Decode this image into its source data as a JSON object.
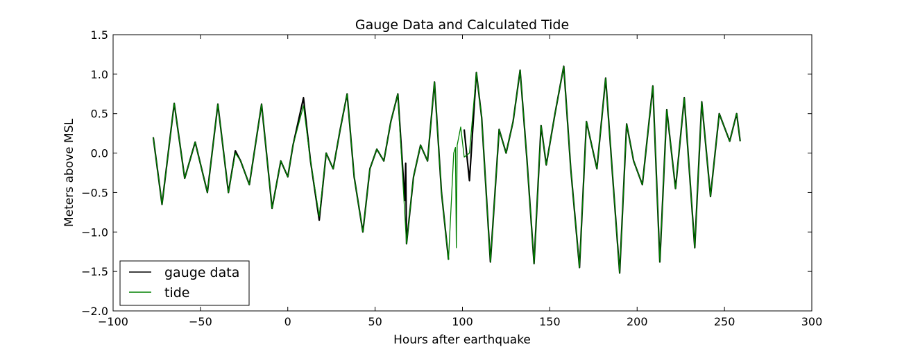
{
  "chart_data": {
    "type": "line",
    "title": "Gauge Data and Calculated Tide",
    "xlabel": "Hours after earthquake",
    "ylabel": "Meters above MSL",
    "xlim": [
      -100,
      300
    ],
    "ylim": [
      -2.0,
      1.5
    ],
    "xticks": [
      -100,
      -50,
      0,
      50,
      100,
      150,
      200,
      250,
      300
    ],
    "xtick_labels": [
      "−100",
      "−50",
      "0",
      "50",
      "100",
      "150",
      "200",
      "250",
      "300"
    ],
    "yticks": [
      -2.0,
      -1.5,
      -1.0,
      -0.5,
      0.0,
      0.5,
      1.0,
      1.5
    ],
    "ytick_labels": [
      "−2.0",
      "−1.5",
      "−1.0",
      "−0.5",
      "0.0",
      "0.5",
      "1.0",
      "1.5"
    ],
    "grid": false,
    "legend": "lower-left",
    "series": [
      {
        "name": "gauge data",
        "color": "#000000",
        "x": [
          -77,
          -72,
          -65,
          -59,
          -53,
          -46,
          -40,
          -34,
          -30,
          -27,
          -22,
          -15,
          -9,
          -4,
          0,
          3,
          9,
          13,
          18,
          22,
          26,
          30,
          34,
          38,
          43,
          47,
          51,
          55,
          59,
          63,
          67,
          67.5,
          68,
          72,
          76,
          80,
          84,
          88,
          92,
          null,
          101,
          104,
          108,
          111,
          116,
          121,
          125,
          129,
          133,
          137,
          141,
          145,
          148,
          153,
          158,
          162,
          167,
          171,
          177,
          182,
          186,
          190,
          194,
          198,
          203,
          209,
          213,
          217,
          222,
          227,
          233,
          237,
          242,
          247,
          253,
          257,
          259
        ],
        "y": [
          0.2,
          -0.65,
          0.63,
          -0.32,
          0.14,
          -0.5,
          0.62,
          -0.5,
          0.03,
          -0.1,
          -0.4,
          0.62,
          -0.7,
          -0.1,
          -0.3,
          0.1,
          0.7,
          -0.1,
          -0.85,
          0.0,
          -0.2,
          0.3,
          0.75,
          -0.3,
          -1.0,
          -0.2,
          0.05,
          -0.1,
          0.4,
          0.75,
          -0.6,
          -0.13,
          -1.15,
          -0.3,
          0.1,
          -0.1,
          0.9,
          -0.5,
          -1.35,
          null,
          0.3,
          -0.35,
          1.02,
          0.45,
          -1.38,
          0.3,
          0.0,
          0.4,
          1.05,
          -0.1,
          -1.4,
          0.35,
          -0.15,
          0.5,
          1.1,
          -0.2,
          -1.45,
          0.4,
          -0.2,
          0.95,
          -0.3,
          -1.52,
          0.37,
          -0.1,
          -0.4,
          0.85,
          -1.38,
          0.55,
          -0.45,
          0.7,
          -1.2,
          0.65,
          -0.55,
          0.5,
          0.15,
          0.5,
          0.15
        ]
      },
      {
        "name": "tide",
        "color": "#008000",
        "x": [
          -77,
          -72,
          -65,
          -59,
          -53,
          -46,
          -40,
          -34,
          -30,
          -27,
          -22,
          -15,
          -9,
          -4,
          0,
          3,
          9,
          13,
          18,
          22,
          26,
          30,
          34,
          38,
          43,
          47,
          51,
          55,
          59,
          63,
          68,
          72,
          76,
          80,
          84,
          88,
          92,
          95,
          96,
          96.5,
          97,
          99,
          101,
          104,
          108,
          111,
          116,
          121,
          125,
          129,
          133,
          137,
          141,
          145,
          148,
          153,
          158,
          162,
          167,
          171,
          177,
          182,
          186,
          190,
          194,
          198,
          203,
          209,
          213,
          217,
          222,
          227,
          233,
          237,
          242,
          247,
          253,
          257,
          259
        ],
        "y": [
          0.2,
          -0.65,
          0.63,
          -0.32,
          0.14,
          -0.5,
          0.62,
          -0.5,
          0.0,
          -0.1,
          -0.4,
          0.62,
          -0.7,
          -0.1,
          -0.3,
          0.1,
          0.6,
          -0.1,
          -0.8,
          0.0,
          -0.2,
          0.3,
          0.75,
          -0.3,
          -1.0,
          -0.2,
          0.05,
          -0.1,
          0.4,
          0.75,
          -1.15,
          -0.3,
          0.1,
          -0.1,
          0.9,
          -0.5,
          -1.35,
          0.0,
          0.07,
          -1.2,
          0.1,
          0.33,
          -0.05,
          0.0,
          1.02,
          0.45,
          -1.38,
          0.3,
          0.0,
          0.4,
          1.05,
          -0.1,
          -1.4,
          0.35,
          -0.15,
          0.5,
          1.1,
          -0.2,
          -1.45,
          0.4,
          -0.2,
          0.95,
          -0.3,
          -1.52,
          0.37,
          -0.1,
          -0.4,
          0.85,
          -1.38,
          0.55,
          -0.45,
          0.7,
          -1.2,
          0.65,
          -0.55,
          0.5,
          0.15,
          0.5,
          0.15
        ]
      }
    ]
  }
}
